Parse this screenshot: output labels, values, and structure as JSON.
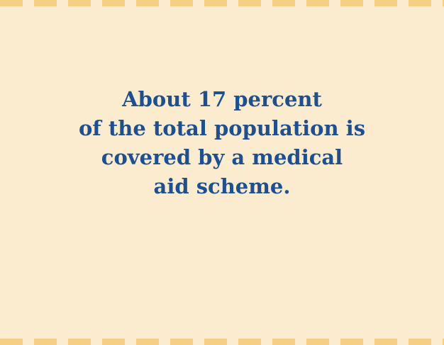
{
  "callout": {
    "lines": [
      "About 17 percent",
      "of the total population is",
      "covered by a medical",
      "aid scheme."
    ]
  },
  "colors": {
    "background": "#fbecd0",
    "dash": "#f6cf84",
    "text": "#1e4f8e"
  }
}
